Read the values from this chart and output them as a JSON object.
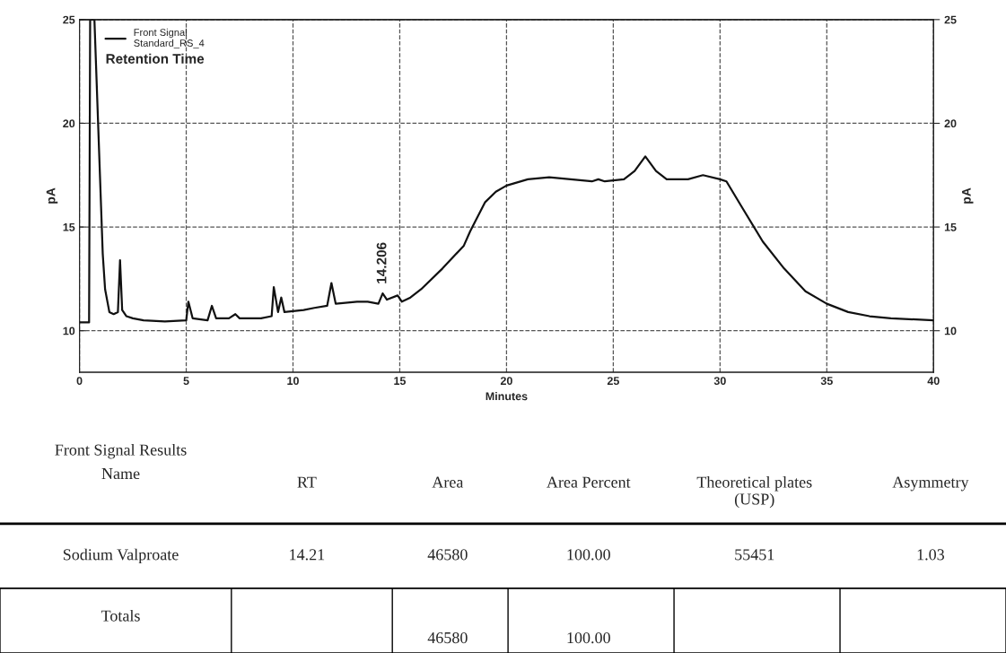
{
  "chart_data": [
    {
      "type": "line",
      "xlabel": "Minutes",
      "ylabel": "pA",
      "y2label": "pA",
      "xlim": [
        0,
        40
      ],
      "xticks": [
        0,
        5,
        10,
        15,
        20,
        25,
        30,
        35,
        40
      ],
      "ylim": [
        8,
        25
      ],
      "yticks": [
        10,
        15,
        20,
        25
      ],
      "y2lim": [
        8,
        25
      ],
      "y2ticks": [
        10,
        15,
        20,
        25
      ],
      "grid": true,
      "line_style": "solid",
      "legend": "top left",
      "legend_title": "Retention Time",
      "annotations": [
        "14.206"
      ],
      "series": [
        {
          "name": "Front Signal\nStandard_RS_4",
          "color": "#111111",
          "x": [
            0,
            0.45,
            0.5,
            0.7,
            1.09,
            1.2,
            1.4,
            1.6,
            1.8,
            1.9,
            2.0,
            2.2,
            2.5,
            3,
            4,
            5,
            5.1,
            5.3,
            6,
            6.2,
            6.4,
            7,
            7.3,
            7.5,
            8.5,
            9,
            9.1,
            9.3,
            9.45,
            9.6,
            10.5,
            11,
            11.6,
            11.8,
            12,
            13,
            13.5,
            14,
            14.2,
            14.4,
            14.9,
            15.1,
            15.5,
            16,
            17,
            18,
            18.3,
            19,
            19.5,
            20,
            21,
            22,
            23,
            24,
            24.3,
            24.6,
            25.5,
            26,
            26.5,
            27,
            27.5,
            28.5,
            29.2,
            30,
            30.3,
            31,
            32,
            33,
            34,
            35,
            36,
            37,
            38,
            40
          ],
          "values": [
            10.4,
            10.4,
            25,
            25,
            13.7,
            12,
            10.9,
            10.8,
            10.9,
            13.4,
            11,
            10.7,
            10.6,
            10.5,
            10.45,
            10.5,
            11.4,
            10.6,
            10.5,
            11.2,
            10.6,
            10.6,
            10.8,
            10.6,
            10.6,
            10.7,
            12.1,
            10.9,
            11.6,
            10.9,
            11,
            11.1,
            11.2,
            12.3,
            11.3,
            11.4,
            11.4,
            11.3,
            11.8,
            11.5,
            11.7,
            11.4,
            11.6,
            12,
            13,
            14.1,
            14.8,
            16.2,
            16.7,
            17,
            17.3,
            17.4,
            17.3,
            17.2,
            17.3,
            17.2,
            17.3,
            17.7,
            18.4,
            17.7,
            17.3,
            17.3,
            17.5,
            17.3,
            17.2,
            16,
            14.3,
            13,
            11.9,
            11.3,
            10.9,
            10.7,
            10.6,
            10.5
          ]
        }
      ]
    },
    {
      "type": "other",
      "title": "Front Signal Results",
      "annotations": [
        "Name",
        "RT",
        "Area",
        "Area Percent",
        "Theoretical plates\n(USP)",
        "Asymmetry",
        "Sodium Valproate",
        "14.21",
        "46580",
        "100.00",
        "55451",
        "1.03",
        "Totals",
        "46580",
        "100.00"
      ]
    }
  ]
}
